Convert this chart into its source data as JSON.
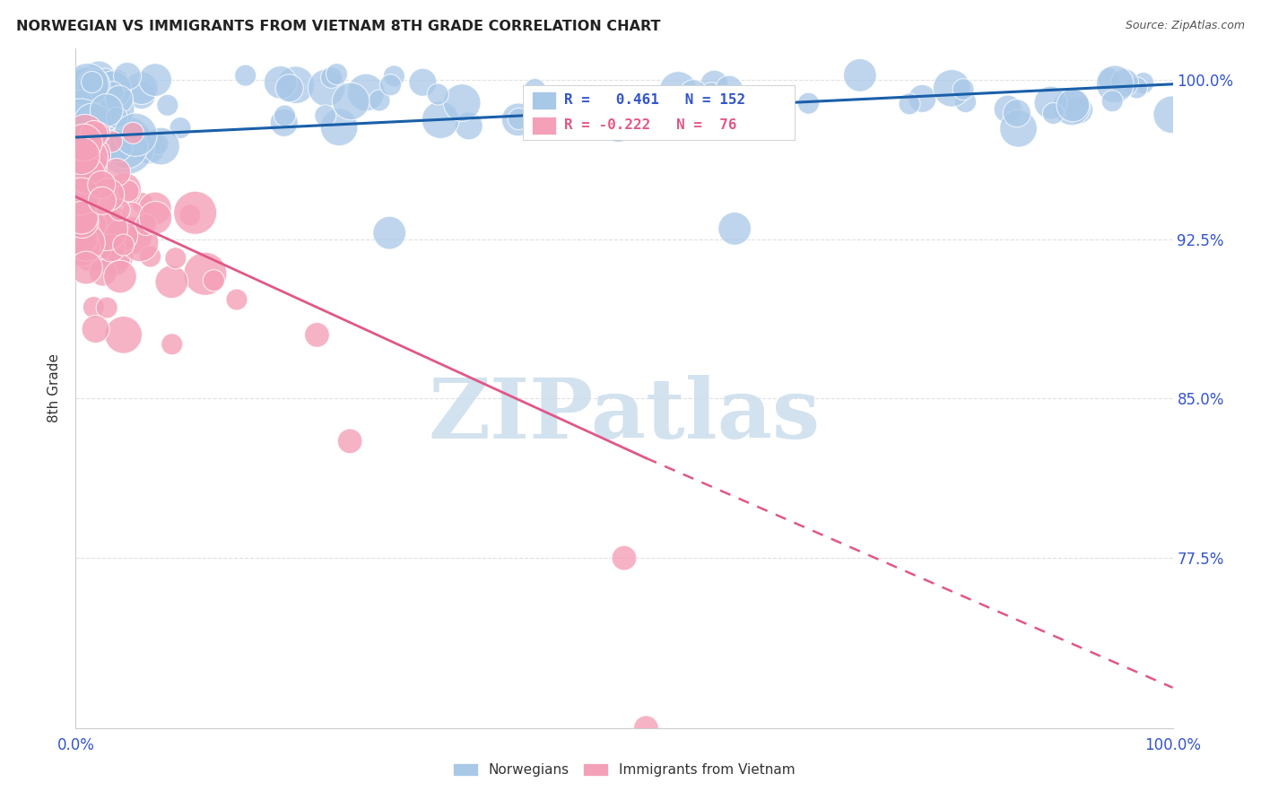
{
  "title": "NORWEGIAN VS IMMIGRANTS FROM VIETNAM 8TH GRADE CORRELATION CHART",
  "source": "Source: ZipAtlas.com",
  "ylabel": "8th Grade",
  "ytick_labels": [
    "77.5%",
    "85.0%",
    "92.5%",
    "100.0%"
  ],
  "ytick_values": [
    0.775,
    0.85,
    0.925,
    1.0
  ],
  "xlim": [
    0.0,
    1.0
  ],
  "ylim": [
    0.695,
    1.015
  ],
  "legend_items": [
    "Norwegians",
    "Immigrants from Vietnam"
  ],
  "norwegian_color": "#a8c8e8",
  "vietnam_color": "#f4a0b8",
  "norwegian_line_color": "#1a5fa8",
  "vietnam_line_color": "#e05888",
  "watermark_color": "#ccdded",
  "R_norwegian": 0.461,
  "N_norwegian": 152,
  "R_vietnam": -0.222,
  "N_vietnam": 76,
  "nor_line_x0": 0.0,
  "nor_line_y0": 0.973,
  "nor_line_x1": 1.0,
  "nor_line_y1": 0.998,
  "viet_line_x0": 0.0,
  "viet_line_y0": 0.945,
  "viet_line_x1_solid": 0.52,
  "viet_line_y1_solid": 0.822,
  "viet_line_x1_dash": 1.0,
  "viet_line_y1_dash": 0.714,
  "background_color": "#ffffff",
  "grid_color": "#e0e0e0",
  "title_color": "#222222",
  "axis_color": "#3355cc"
}
